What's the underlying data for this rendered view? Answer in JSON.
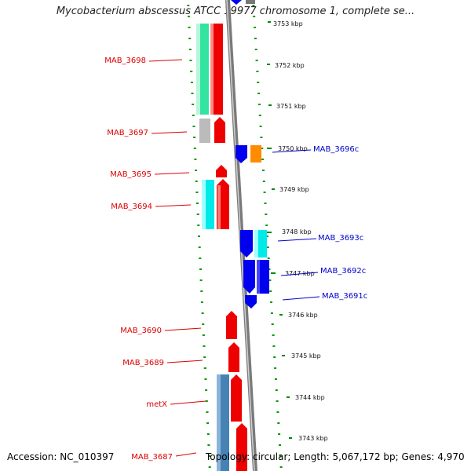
{
  "title": "Mycobacterium abscessus ATCC 19977 chromosome 1, complete se...",
  "footer": {
    "accession": "Accession: NC_010397",
    "summary": "Topology: circular; Length: 5,067,172 bp; Genes: 4,970"
  },
  "colors": {
    "forward_label": "#dd0000",
    "reverse_label": "#0000cc",
    "backbone": "#888888",
    "ticks": "#008800"
  },
  "ruler": [
    "3753 kbp",
    "3752 kbp",
    "3751 kbp",
    "3750 kbp",
    "3749 kbp",
    "3748 kbp",
    "3747 kbp",
    "3746 kbp",
    "3745 kbp",
    "3744 kbp",
    "3743 kbp"
  ],
  "genes_forward": [
    "MAB_3698",
    "MAB_3697",
    "MAB_3695",
    "MAB_3694",
    "MAB_3690",
    "MAB_3689",
    "metX",
    "MAB_3687"
  ],
  "genes_reverse": [
    "MAB_3696c",
    "MAB_3693c",
    "MAB_3692c",
    "MAB_3691c"
  ]
}
